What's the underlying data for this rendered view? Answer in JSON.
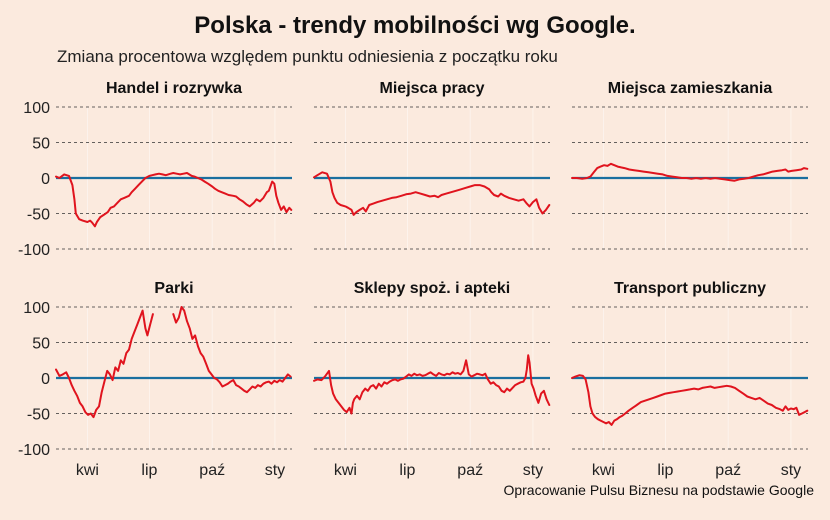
{
  "title": "Polska - trendy mobilności wg Google.",
  "subtitle": "Zmiana procentowa względem punktu odniesienia z początku roku",
  "caption": "Opracowanie Pulsu Biznesu na podstawie Google",
  "colors": {
    "background": "#fbeade",
    "series": "#e0141e",
    "zero_line": "#1a6f9f",
    "grid": "#333333"
  },
  "chart_data": [
    {
      "type": "line",
      "title": "Handel i rozrywka",
      "ylim": [
        -100,
        100
      ],
      "yticks": [
        100,
        50,
        0,
        -50,
        -100
      ],
      "xlim": [
        "2020-02-15",
        "2021-01-26"
      ],
      "xticks": [
        {
          "x": "2020-04-01",
          "label": "kwi"
        },
        {
          "x": "2020-07-01",
          "label": "lip"
        },
        {
          "x": "2020-10-01",
          "label": "paź"
        },
        {
          "x": "2021-01-01",
          "label": "sty"
        }
      ],
      "grid": "horizontal dashed",
      "x": [
        "2020-02-15",
        "2020-02-20",
        "2020-02-27",
        "2020-03-05",
        "2020-03-10",
        "2020-03-13",
        "2020-03-15",
        "2020-03-20",
        "2020-03-25",
        "2020-04-01",
        "2020-04-05",
        "2020-04-08",
        "2020-04-12",
        "2020-04-15",
        "2020-04-20",
        "2020-04-25",
        "2020-05-01",
        "2020-05-05",
        "2020-05-10",
        "2020-05-15",
        "2020-05-20",
        "2020-05-25",
        "2020-06-01",
        "2020-06-05",
        "2020-06-10",
        "2020-06-15",
        "2020-06-20",
        "2020-06-25",
        "2020-07-01",
        "2020-07-05",
        "2020-07-10",
        "2020-07-15",
        "2020-07-20",
        "2020-07-25",
        "2020-08-01",
        "2020-08-05",
        "2020-08-10",
        "2020-08-15",
        "2020-08-20",
        "2020-08-25",
        "2020-09-01",
        "2020-09-05",
        "2020-09-10",
        "2020-09-15",
        "2020-09-20",
        "2020-09-25",
        "2020-10-01",
        "2020-10-05",
        "2020-10-10",
        "2020-10-15",
        "2020-10-20",
        "2020-10-25",
        "2020-11-01",
        "2020-11-05",
        "2020-11-10",
        "2020-11-15",
        "2020-11-20",
        "2020-11-25",
        "2020-12-01",
        "2020-12-05",
        "2020-12-10",
        "2020-12-15",
        "2020-12-20",
        "2020-12-23",
        "2020-12-26",
        "2020-12-28",
        "2020-12-31",
        "2021-01-03",
        "2021-01-06",
        "2021-01-10",
        "2021-01-14",
        "2021-01-18",
        "2021-01-22",
        "2021-01-25"
      ],
      "values": [
        2,
        0,
        5,
        3,
        -10,
        -30,
        -50,
        -58,
        -60,
        -62,
        -60,
        -63,
        -68,
        -62,
        -55,
        -52,
        -48,
        -42,
        -40,
        -35,
        -30,
        -28,
        -25,
        -20,
        -15,
        -10,
        -5,
        0,
        3,
        4,
        5,
        6,
        5,
        4,
        6,
        7,
        6,
        5,
        6,
        7,
        3,
        2,
        0,
        -2,
        -5,
        -8,
        -12,
        -15,
        -18,
        -20,
        -22,
        -24,
        -25,
        -26,
        -30,
        -33,
        -37,
        -40,
        -35,
        -30,
        -33,
        -28,
        -20,
        -18,
        -10,
        -5,
        -8,
        -25,
        -35,
        -45,
        -40,
        -48,
        -42,
        -45
      ]
    },
    {
      "type": "line",
      "title": "Miejsca pracy",
      "ylim": [
        -100,
        100
      ],
      "yticks": [
        100,
        50,
        0,
        -50,
        -100
      ],
      "xlim": [
        "2020-02-15",
        "2021-01-26"
      ],
      "xticks": [
        {
          "x": "2020-04-01",
          "label": "kwi"
        },
        {
          "x": "2020-07-01",
          "label": "lip"
        },
        {
          "x": "2020-10-01",
          "label": "paź"
        },
        {
          "x": "2021-01-01",
          "label": "sty"
        }
      ],
      "grid": "horizontal dashed",
      "x": [
        "2020-02-15",
        "2020-02-20",
        "2020-02-27",
        "2020-03-05",
        "2020-03-10",
        "2020-03-13",
        "2020-03-16",
        "2020-03-20",
        "2020-03-25",
        "2020-04-01",
        "2020-04-05",
        "2020-04-10",
        "2020-04-13",
        "2020-04-17",
        "2020-04-22",
        "2020-04-27",
        "2020-05-01",
        "2020-05-06",
        "2020-05-12",
        "2020-05-18",
        "2020-05-25",
        "2020-06-01",
        "2020-06-08",
        "2020-06-15",
        "2020-06-22",
        "2020-06-29",
        "2020-07-06",
        "2020-07-13",
        "2020-07-20",
        "2020-07-27",
        "2020-08-03",
        "2020-08-10",
        "2020-08-15",
        "2020-08-20",
        "2020-08-27",
        "2020-09-03",
        "2020-09-10",
        "2020-09-17",
        "2020-09-24",
        "2020-10-01",
        "2020-10-08",
        "2020-10-15",
        "2020-10-22",
        "2020-10-29",
        "2020-11-01",
        "2020-11-05",
        "2020-11-11",
        "2020-11-15",
        "2020-11-20",
        "2020-11-27",
        "2020-12-04",
        "2020-12-11",
        "2020-12-18",
        "2020-12-23",
        "2020-12-27",
        "2021-01-01",
        "2021-01-06",
        "2021-01-10",
        "2021-01-15",
        "2021-01-20",
        "2021-01-25"
      ],
      "values": [
        1,
        4,
        8,
        6,
        -5,
        -20,
        -28,
        -35,
        -38,
        -40,
        -42,
        -45,
        -52,
        -48,
        -45,
        -42,
        -47,
        -38,
        -36,
        -34,
        -32,
        -30,
        -28,
        -27,
        -25,
        -23,
        -22,
        -20,
        -22,
        -24,
        -26,
        -25,
        -27,
        -24,
        -22,
        -20,
        -18,
        -16,
        -14,
        -12,
        -10,
        -10,
        -12,
        -16,
        -20,
        -24,
        -26,
        -22,
        -25,
        -28,
        -30,
        -32,
        -30,
        -36,
        -40,
        -34,
        -30,
        -42,
        -50,
        -45,
        -38
      ]
    },
    {
      "type": "line",
      "title": "Miejsca zamieszkania",
      "ylim": [
        -100,
        100
      ],
      "yticks": [
        100,
        50,
        0,
        -50,
        -100
      ],
      "xlim": [
        "2020-02-15",
        "2021-01-26"
      ],
      "xticks": [
        {
          "x": "2020-04-01",
          "label": "kwi"
        },
        {
          "x": "2020-07-01",
          "label": "lip"
        },
        {
          "x": "2020-10-01",
          "label": "paź"
        },
        {
          "x": "2021-01-01",
          "label": "sty"
        }
      ],
      "grid": "horizontal dashed",
      "x": [
        "2020-02-15",
        "2020-02-22",
        "2020-03-01",
        "2020-03-08",
        "2020-03-13",
        "2020-03-18",
        "2020-03-23",
        "2020-03-28",
        "2020-04-02",
        "2020-04-07",
        "2020-04-12",
        "2020-04-17",
        "2020-04-22",
        "2020-04-27",
        "2020-05-02",
        "2020-05-09",
        "2020-05-16",
        "2020-05-23",
        "2020-05-30",
        "2020-06-06",
        "2020-06-13",
        "2020-06-20",
        "2020-06-27",
        "2020-07-04",
        "2020-07-11",
        "2020-07-18",
        "2020-07-25",
        "2020-08-01",
        "2020-08-08",
        "2020-08-15",
        "2020-08-22",
        "2020-08-29",
        "2020-09-05",
        "2020-09-12",
        "2020-09-19",
        "2020-09-26",
        "2020-10-03",
        "2020-10-10",
        "2020-10-17",
        "2020-10-24",
        "2020-10-31",
        "2020-11-07",
        "2020-11-14",
        "2020-11-21",
        "2020-11-28",
        "2020-12-05",
        "2020-12-12",
        "2020-12-19",
        "2020-12-24",
        "2020-12-28",
        "2021-01-02",
        "2021-01-09",
        "2021-01-16",
        "2021-01-20",
        "2021-01-25"
      ],
      "values": [
        0,
        0,
        -1,
        0,
        2,
        8,
        14,
        16,
        18,
        17,
        20,
        18,
        16,
        15,
        14,
        12,
        11,
        10,
        9,
        8,
        7,
        6,
        5,
        3,
        2,
        1,
        0,
        0,
        -1,
        0,
        -1,
        0,
        -1,
        0,
        -1,
        -2,
        -3,
        -4,
        -2,
        -1,
        0,
        2,
        4,
        5,
        7,
        9,
        10,
        11,
        12,
        9,
        10,
        11,
        12,
        14,
        13
      ]
    },
    {
      "type": "line",
      "title": "Parki",
      "ylim": [
        -100,
        100
      ],
      "yticks": [
        100,
        50,
        0,
        -50,
        -100
      ],
      "xlim": [
        "2020-02-15",
        "2021-01-26"
      ],
      "xticks": [
        {
          "x": "2020-04-01",
          "label": "kwi"
        },
        {
          "x": "2020-07-01",
          "label": "lip"
        },
        {
          "x": "2020-10-01",
          "label": "paź"
        },
        {
          "x": "2021-01-01",
          "label": "sty"
        }
      ],
      "grid": "horizontal dashed",
      "segments": [
        {
          "x": [
            "2020-02-15",
            "2020-02-20",
            "2020-02-25",
            "2020-03-01",
            "2020-03-05",
            "2020-03-09",
            "2020-03-13",
            "2020-03-17",
            "2020-03-21",
            "2020-03-25",
            "2020-03-29",
            "2020-04-02",
            "2020-04-06",
            "2020-04-10",
            "2020-04-14",
            "2020-04-18",
            "2020-04-22",
            "2020-04-26",
            "2020-04-30",
            "2020-05-04",
            "2020-05-08",
            "2020-05-12",
            "2020-05-16",
            "2020-05-20",
            "2020-05-24",
            "2020-05-28",
            "2020-06-01",
            "2020-06-05",
            "2020-06-09",
            "2020-06-13",
            "2020-06-17",
            "2020-06-21",
            "2020-06-25",
            "2020-06-28",
            "2020-07-02",
            "2020-07-06"
          ],
          "values": [
            12,
            3,
            5,
            8,
            0,
            -10,
            -18,
            -25,
            -35,
            -40,
            -48,
            -52,
            -50,
            -55,
            -45,
            -40,
            -20,
            -5,
            10,
            5,
            -3,
            15,
            10,
            25,
            20,
            35,
            40,
            55,
            65,
            75,
            85,
            95,
            70,
            60,
            75,
            90
          ]
        },
        {
          "x": [
            "2020-08-05",
            "2020-08-09",
            "2020-08-13",
            "2020-08-17",
            "2020-08-21",
            "2020-08-25",
            "2020-08-29",
            "2020-09-02",
            "2020-09-06",
            "2020-09-10",
            "2020-09-14",
            "2020-09-18",
            "2020-09-22",
            "2020-09-26",
            "2020-09-30",
            "2020-10-04",
            "2020-10-08",
            "2020-10-12",
            "2020-10-16",
            "2020-10-20",
            "2020-10-24",
            "2020-10-28",
            "2020-11-01",
            "2020-11-05",
            "2020-11-09",
            "2020-11-13",
            "2020-11-17",
            "2020-11-21",
            "2020-11-25",
            "2020-11-29",
            "2020-12-03",
            "2020-12-07",
            "2020-12-11",
            "2020-12-15",
            "2020-12-19",
            "2020-12-23",
            "2020-12-27",
            "2020-12-31",
            "2021-01-04",
            "2021-01-08",
            "2021-01-12",
            "2021-01-16",
            "2021-01-20",
            "2021-01-24"
          ],
          "values": [
            90,
            78,
            85,
            100,
            95,
            80,
            70,
            55,
            60,
            45,
            35,
            30,
            20,
            10,
            5,
            0,
            -2,
            -6,
            -12,
            -10,
            -8,
            -5,
            -3,
            -10,
            -12,
            -15,
            -18,
            -20,
            -16,
            -12,
            -14,
            -10,
            -12,
            -8,
            -6,
            -5,
            -8,
            -4,
            -6,
            -3,
            -5,
            0,
            5,
            2
          ]
        }
      ]
    },
    {
      "type": "line",
      "title": "Sklepy spoż. i apteki",
      "ylim": [
        -100,
        100
      ],
      "yticks": [
        100,
        50,
        0,
        -50,
        -100
      ],
      "xlim": [
        "2020-02-15",
        "2021-01-26"
      ],
      "xticks": [
        {
          "x": "2020-04-01",
          "label": "kwi"
        },
        {
          "x": "2020-07-01",
          "label": "lip"
        },
        {
          "x": "2020-10-01",
          "label": "paź"
        },
        {
          "x": "2021-01-01",
          "label": "sty"
        }
      ],
      "grid": "horizontal dashed",
      "x": [
        "2020-02-15",
        "2020-02-20",
        "2020-02-26",
        "2020-03-02",
        "2020-03-08",
        "2020-03-11",
        "2020-03-14",
        "2020-03-18",
        "2020-03-22",
        "2020-03-26",
        "2020-03-30",
        "2020-04-03",
        "2020-04-07",
        "2020-04-10",
        "2020-04-12",
        "2020-04-14",
        "2020-04-18",
        "2020-04-22",
        "2020-04-26",
        "2020-04-30",
        "2020-05-04",
        "2020-05-08",
        "2020-05-12",
        "2020-05-16",
        "2020-05-20",
        "2020-05-24",
        "2020-05-28",
        "2020-06-01",
        "2020-06-05",
        "2020-06-09",
        "2020-06-13",
        "2020-06-17",
        "2020-06-21",
        "2020-06-25",
        "2020-06-29",
        "2020-07-03",
        "2020-07-07",
        "2020-07-11",
        "2020-07-15",
        "2020-07-19",
        "2020-07-23",
        "2020-07-27",
        "2020-07-31",
        "2020-08-04",
        "2020-08-08",
        "2020-08-12",
        "2020-08-16",
        "2020-08-20",
        "2020-08-24",
        "2020-08-28",
        "2020-09-01",
        "2020-09-05",
        "2020-09-09",
        "2020-09-13",
        "2020-09-17",
        "2020-09-21",
        "2020-09-25",
        "2020-09-29",
        "2020-10-03",
        "2020-10-07",
        "2020-10-11",
        "2020-10-15",
        "2020-10-19",
        "2020-10-23",
        "2020-10-27",
        "2020-10-31",
        "2020-11-04",
        "2020-11-08",
        "2020-11-12",
        "2020-11-16",
        "2020-11-20",
        "2020-11-24",
        "2020-11-28",
        "2020-12-02",
        "2020-12-06",
        "2020-12-10",
        "2020-12-14",
        "2020-12-18",
        "2020-12-21",
        "2020-12-23",
        "2020-12-25",
        "2020-12-27",
        "2020-12-30",
        "2021-01-02",
        "2021-01-05",
        "2021-01-09",
        "2021-01-13",
        "2021-01-17",
        "2021-01-21",
        "2021-01-25"
      ],
      "values": [
        -4,
        -2,
        -3,
        2,
        10,
        -10,
        -22,
        -30,
        -35,
        -40,
        -45,
        -48,
        -42,
        -50,
        -35,
        -30,
        -25,
        -30,
        -20,
        -15,
        -18,
        -12,
        -10,
        -15,
        -8,
        -12,
        -6,
        -8,
        -5,
        -3,
        -2,
        -4,
        -2,
        -1,
        2,
        5,
        3,
        6,
        4,
        5,
        3,
        4,
        6,
        8,
        5,
        3,
        7,
        5,
        4,
        6,
        5,
        8,
        6,
        7,
        5,
        10,
        25,
        5,
        2,
        4,
        6,
        5,
        4,
        6,
        -2,
        -8,
        -6,
        -10,
        -12,
        -18,
        -20,
        -15,
        -18,
        -14,
        -10,
        -8,
        -6,
        -5,
        0,
        12,
        32,
        22,
        -8,
        -15,
        -25,
        -35,
        -22,
        -18,
        -30,
        -38
      ]
    },
    {
      "type": "line",
      "title": "Transport publiczny",
      "ylim": [
        -100,
        100
      ],
      "yticks": [
        100,
        50,
        0,
        -50,
        -100
      ],
      "xlim": [
        "2020-02-15",
        "2021-01-26"
      ],
      "xticks": [
        {
          "x": "2020-04-01",
          "label": "kwi"
        },
        {
          "x": "2020-07-01",
          "label": "lip"
        },
        {
          "x": "2020-10-01",
          "label": "paź"
        },
        {
          "x": "2021-01-01",
          "label": "sty"
        }
      ],
      "grid": "horizontal dashed",
      "x": [
        "2020-02-15",
        "2020-02-20",
        "2020-02-26",
        "2020-03-02",
        "2020-03-06",
        "2020-03-10",
        "2020-03-13",
        "2020-03-16",
        "2020-03-20",
        "2020-03-24",
        "2020-03-28",
        "2020-04-01",
        "2020-04-05",
        "2020-04-09",
        "2020-04-13",
        "2020-04-17",
        "2020-04-21",
        "2020-04-25",
        "2020-04-29",
        "2020-05-03",
        "2020-05-08",
        "2020-05-14",
        "2020-05-20",
        "2020-05-26",
        "2020-06-01",
        "2020-06-07",
        "2020-06-13",
        "2020-06-19",
        "2020-06-25",
        "2020-07-01",
        "2020-07-07",
        "2020-07-13",
        "2020-07-19",
        "2020-07-25",
        "2020-07-31",
        "2020-08-06",
        "2020-08-12",
        "2020-08-18",
        "2020-08-24",
        "2020-08-30",
        "2020-09-05",
        "2020-09-11",
        "2020-09-17",
        "2020-09-23",
        "2020-09-29",
        "2020-10-05",
        "2020-10-11",
        "2020-10-17",
        "2020-10-23",
        "2020-10-29",
        "2020-11-04",
        "2020-11-10",
        "2020-11-16",
        "2020-11-22",
        "2020-11-28",
        "2020-12-04",
        "2020-12-10",
        "2020-12-16",
        "2020-12-20",
        "2020-12-24",
        "2020-12-28",
        "2021-01-01",
        "2021-01-05",
        "2021-01-09",
        "2021-01-13",
        "2021-01-17",
        "2021-01-21",
        "2021-01-25"
      ],
      "values": [
        0,
        2,
        4,
        3,
        -2,
        -20,
        -40,
        -50,
        -55,
        -58,
        -60,
        -62,
        -64,
        -62,
        -66,
        -60,
        -58,
        -55,
        -53,
        -50,
        -46,
        -42,
        -38,
        -34,
        -32,
        -30,
        -28,
        -26,
        -24,
        -22,
        -21,
        -20,
        -19,
        -18,
        -17,
        -16,
        -15,
        -16,
        -14,
        -13,
        -12,
        -14,
        -13,
        -12,
        -11,
        -12,
        -14,
        -18,
        -22,
        -26,
        -28,
        -30,
        -28,
        -32,
        -36,
        -38,
        -42,
        -44,
        -46,
        -40,
        -45,
        -43,
        -44,
        -42,
        -52,
        -50,
        -48,
        -46
      ]
    }
  ]
}
